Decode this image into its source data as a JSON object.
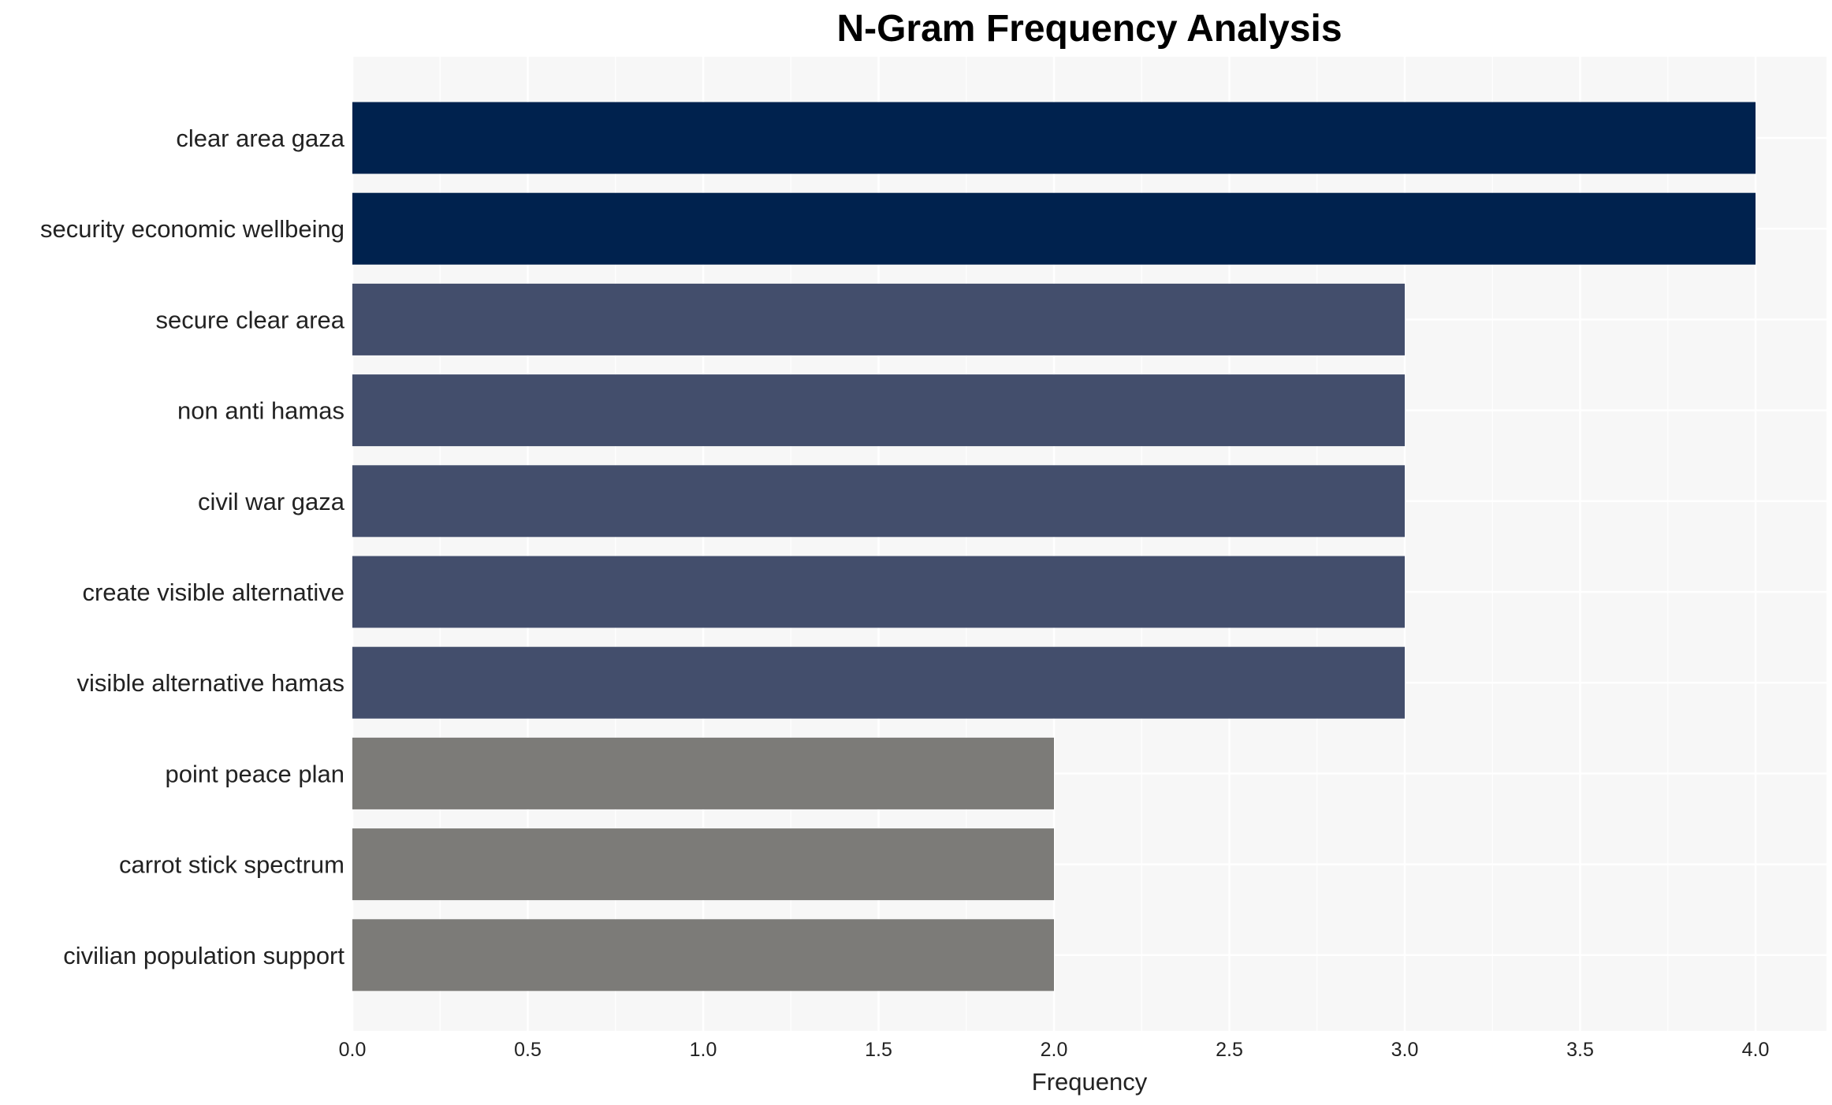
{
  "chart_data": {
    "type": "bar",
    "orientation": "horizontal",
    "title": "N-Gram Frequency Analysis",
    "xlabel": "Frequency",
    "ylabel": "",
    "xlim": [
      0,
      4.2
    ],
    "xticks": [
      "0.0",
      "0.5",
      "1.0",
      "1.5",
      "2.0",
      "2.5",
      "3.0",
      "3.5",
      "4.0"
    ],
    "grid": true,
    "categories": [
      "clear area gaza",
      "security economic wellbeing",
      "secure clear area",
      "non anti hamas",
      "civil war gaza",
      "create visible alternative",
      "visible alternative hamas",
      "point peace plan",
      "carrot stick spectrum",
      "civilian population support"
    ],
    "values": [
      4,
      4,
      3,
      3,
      3,
      3,
      3,
      2,
      2,
      2
    ],
    "colors": {
      "4": "#00224e",
      "3": "#434e6c",
      "2": "#7c7b78"
    },
    "background": "#f7f7f7"
  }
}
